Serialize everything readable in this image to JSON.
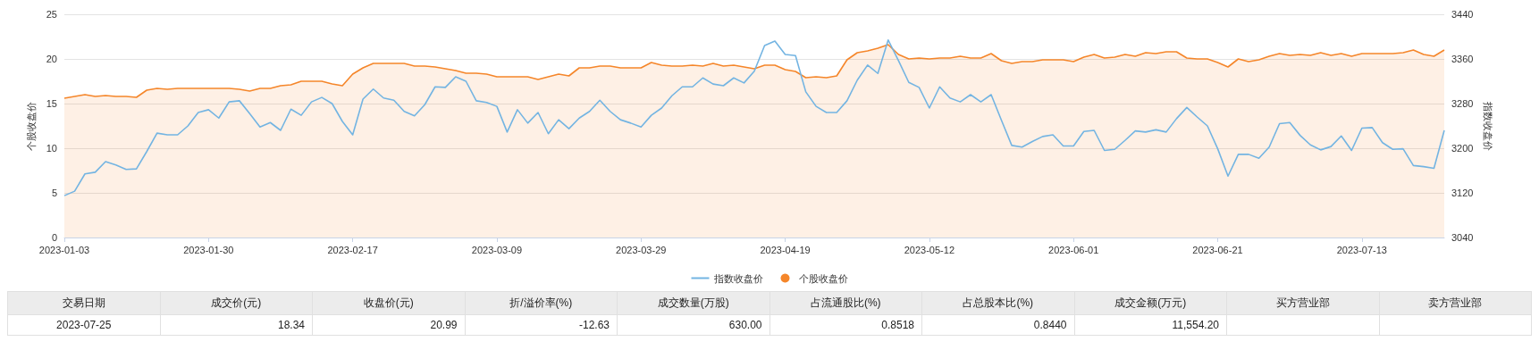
{
  "chart_data": [
    {
      "type": "line",
      "ylabel": "个股收盘价",
      "y2label": "指数收盘价",
      "categories": [
        "2023-01-03",
        null,
        null,
        null,
        null,
        null,
        null,
        null,
        null,
        null,
        null,
        null,
        null,
        null,
        "2023-01-30",
        null,
        null,
        null,
        null,
        null,
        null,
        null,
        null,
        null,
        null,
        null,
        null,
        null,
        "2023-02-17",
        null,
        null,
        null,
        null,
        null,
        null,
        null,
        null,
        null,
        null,
        null,
        null,
        null,
        "2023-03-09",
        null,
        null,
        null,
        null,
        null,
        null,
        null,
        null,
        null,
        null,
        null,
        null,
        null,
        "2023-03-29",
        null,
        null,
        null,
        null,
        null,
        null,
        null,
        null,
        null,
        null,
        null,
        null,
        null,
        "2023-04-19",
        null,
        null,
        null,
        null,
        null,
        null,
        null,
        null,
        null,
        null,
        null,
        null,
        null,
        "2023-05-12",
        null,
        null,
        null,
        null,
        null,
        null,
        null,
        null,
        null,
        null,
        null,
        null,
        null,
        "2023-06-01",
        null,
        null,
        null,
        null,
        null,
        null,
        null,
        null,
        null,
        null,
        null,
        null,
        null,
        "2023-06-21",
        null,
        null,
        null,
        null,
        null,
        null,
        null,
        null,
        null,
        null,
        null,
        null,
        null,
        "2023-07-13",
        null,
        null,
        null,
        null,
        null,
        null,
        null,
        null
      ],
      "series": [
        {
          "name": "指数收盘价",
          "type": "line",
          "axis": "y2",
          "color": "#73b4e2",
          "values": [
            3115,
            3123,
            3154,
            3157,
            3176,
            3170,
            3162,
            3163,
            3194,
            3227,
            3224,
            3224,
            3240,
            3264,
            3269,
            3254,
            3283,
            3285,
            3262,
            3238,
            3246,
            3232,
            3270,
            3259,
            3283,
            3291,
            3280,
            3248,
            3224,
            3288,
            3306,
            3290,
            3286,
            3266,
            3258,
            3278,
            3310,
            3309,
            3328,
            3320,
            3285,
            3282,
            3275,
            3229,
            3269,
            3245,
            3264,
            3226,
            3251,
            3235,
            3254,
            3266,
            3286,
            3266,
            3251,
            3245,
            3238,
            3259,
            3272,
            3294,
            3310,
            3310,
            3326,
            3315,
            3312,
            3326,
            3317,
            3338,
            3384,
            3392,
            3368,
            3366,
            3301,
            3275,
            3264,
            3264,
            3285,
            3322,
            3349,
            3334,
            3394,
            3357,
            3318,
            3309,
            3272,
            3310,
            3290,
            3283,
            3296,
            3283,
            3296,
            3250,
            3205,
            3202,
            3212,
            3221,
            3224,
            3204,
            3204,
            3230,
            3232,
            3196,
            3198,
            3214,
            3231,
            3229,
            3233,
            3229,
            3253,
            3273,
            3256,
            3240,
            3199,
            3150,
            3189,
            3189,
            3182,
            3202,
            3244,
            3246,
            3223,
            3206,
            3197,
            3203,
            3222,
            3196,
            3236,
            3237,
            3210,
            3198,
            3199,
            3169,
            3167,
            3164,
            3232
          ]
        },
        {
          "name": "个股收盘价",
          "type": "area",
          "axis": "y",
          "color": "#f5862a",
          "values": [
            15.6,
            15.8,
            16.0,
            15.8,
            15.9,
            15.8,
            15.8,
            15.7,
            16.5,
            16.7,
            16.6,
            16.7,
            16.7,
            16.7,
            16.7,
            16.7,
            16.7,
            16.6,
            16.4,
            16.7,
            16.7,
            17.0,
            17.1,
            17.5,
            17.5,
            17.5,
            17.2,
            17.0,
            18.3,
            19.0,
            19.5,
            19.5,
            19.5,
            19.5,
            19.2,
            19.2,
            19.1,
            18.9,
            18.7,
            18.4,
            18.4,
            18.3,
            18.0,
            18.0,
            18.0,
            18.0,
            17.7,
            18.0,
            18.3,
            18.1,
            19.0,
            19.0,
            19.2,
            19.2,
            19.0,
            19.0,
            19.0,
            19.6,
            19.3,
            19.2,
            19.2,
            19.3,
            19.2,
            19.5,
            19.2,
            19.3,
            19.1,
            18.9,
            19.3,
            19.3,
            18.8,
            18.6,
            17.9,
            18.0,
            17.9,
            18.1,
            19.9,
            20.7,
            20.9,
            21.2,
            21.6,
            20.5,
            20.0,
            20.1,
            20.0,
            20.1,
            20.1,
            20.3,
            20.1,
            20.1,
            20.6,
            19.8,
            19.5,
            19.7,
            19.7,
            19.9,
            19.9,
            19.9,
            19.7,
            20.2,
            20.5,
            20.1,
            20.2,
            20.5,
            20.3,
            20.7,
            20.6,
            20.8,
            20.8,
            20.1,
            20.0,
            20.0,
            19.6,
            19.1,
            20.0,
            19.7,
            19.9,
            20.3,
            20.6,
            20.4,
            20.5,
            20.4,
            20.7,
            20.4,
            20.6,
            20.3,
            20.6,
            20.6,
            20.6,
            20.6,
            20.7,
            21.0,
            20.5,
            20.3,
            21.0
          ]
        }
      ],
      "ylim": [
        0,
        25
      ],
      "yticks": [
        0,
        5,
        10,
        15,
        20,
        25
      ],
      "y2lim": [
        3040,
        3440
      ],
      "y2ticks": [
        3040,
        3120,
        3200,
        3280,
        3360,
        3440
      ],
      "grid": "y",
      "legend": "bottom",
      "marker": "none"
    },
    {
      "type": "other",
      "categories": [
        "交易日期",
        "成交价(元)",
        "收盘价(元)",
        "折/溢价率(%)",
        "成交数量(万股)",
        "占流通股比(%)",
        "占总股本比(%)",
        "成交金额(万元)",
        "买方营业部",
        "卖方营业部"
      ],
      "cell_labels": [
        [
          "2023-07-25",
          "18.34",
          "20.99",
          "-12.63",
          "630.00",
          "0.8518",
          "0.8440",
          "11,554.20",
          null,
          null
        ]
      ]
    }
  ]
}
